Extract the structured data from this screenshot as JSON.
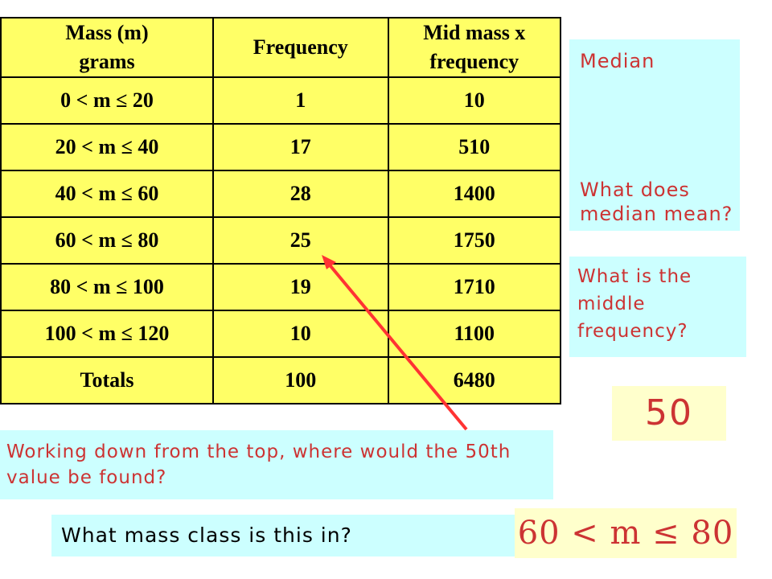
{
  "table": {
    "headers": [
      [
        "Mass (m)",
        "grams"
      ],
      [
        "Frequency"
      ],
      [
        "Mid mass x",
        "frequency"
      ]
    ],
    "rows": [
      [
        "0 < m ≤ 20",
        "1",
        "10"
      ],
      [
        "20 < m ≤ 40",
        "17",
        "510"
      ],
      [
        "40 < m ≤ 60",
        "28",
        "1400"
      ],
      [
        "60 < m ≤ 80",
        "25",
        "1750"
      ],
      [
        "80 < m ≤ 100",
        "19",
        "1710"
      ],
      [
        "100 < m ≤ 120",
        "10",
        "1100"
      ]
    ],
    "totals": [
      "Totals",
      "100",
      "6480"
    ]
  },
  "median_box": {
    "title": "Median",
    "question": "What does median mean?"
  },
  "middle_box": {
    "question": "What is the middle frequency?"
  },
  "answer_middle": "50",
  "working_box": {
    "text": "Working down from the top, where would the 50th value be found?"
  },
  "class_question": "What mass class is this in?",
  "class_answer": "60 < m ≤ 80",
  "colors": {
    "table_bg": "#ffff66",
    "cyan_box": "#ccffff",
    "answer_bg": "#ffffcc",
    "red_text": "#cc3333",
    "arrow": "#ff3333"
  }
}
